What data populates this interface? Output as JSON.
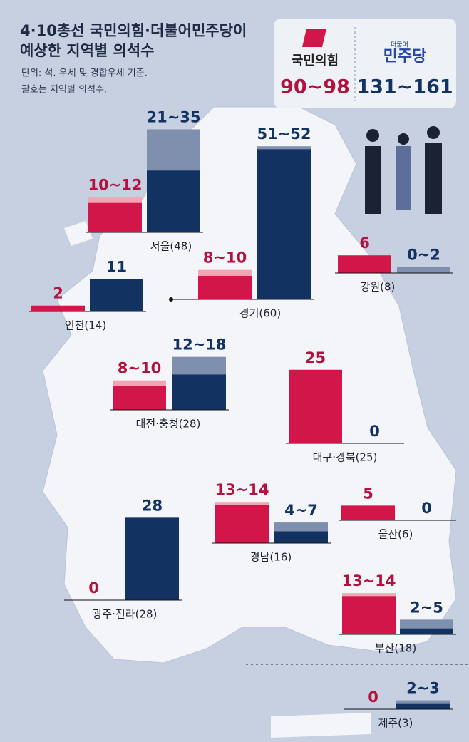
{
  "header": {
    "title": [
      "4·10총선 국민의힘·더불어민주당이",
      "예상한 지역별 의석수"
    ],
    "subtitle": [
      "단위: 석. 우세 및 경합우세 기준.",
      "괄호는 지역별 의석수."
    ]
  },
  "parties": [
    {
      "name": "국민의힘",
      "total": "90~98",
      "color": "#d2164a",
      "light": "#f2a5b2",
      "text": "#b3123f"
    },
    {
      "name": "민주당",
      "prefix": "더불어",
      "total": "131~161",
      "color": "#123262",
      "light": "#7f8fae",
      "text": "#123262"
    }
  ],
  "regions": [
    {
      "name": "서울(48)",
      "parties": [
        {
          "values": [
            10,
            12
          ],
          "label": "10~12"
        },
        {
          "values": [
            21,
            35
          ],
          "label": "21~35"
        }
      ]
    },
    {
      "name": "인천(14)",
      "parties": [
        {
          "values": [
            2
          ],
          "label": "2"
        },
        {
          "values": [
            11
          ],
          "label": "11"
        }
      ]
    },
    {
      "name": "경기(60)",
      "parties": [
        {
          "values": [
            8,
            10
          ],
          "label": "8~10"
        },
        {
          "values": [
            51,
            52
          ],
          "label": "51~52"
        }
      ]
    },
    {
      "name": "강원(8)",
      "parties": [
        {
          "values": [
            6
          ],
          "label": "6"
        },
        {
          "values": [
            0,
            2
          ],
          "label": "0~2"
        }
      ]
    },
    {
      "name": "대전·충청(28)",
      "parties": [
        {
          "values": [
            8,
            10
          ],
          "label": "8~10"
        },
        {
          "values": [
            12,
            18
          ],
          "label": "12~18"
        }
      ]
    },
    {
      "name": "대구·경북(25)",
      "parties": [
        {
          "values": [
            25
          ],
          "label": "25"
        },
        {
          "values": [
            0
          ],
          "label": "0"
        }
      ]
    },
    {
      "name": "경남(16)",
      "parties": [
        {
          "values": [
            13,
            14
          ],
          "label": "13~14"
        },
        {
          "values": [
            4,
            7
          ],
          "label": "4~7"
        }
      ]
    },
    {
      "name": "울산(6)",
      "parties": [
        {
          "values": [
            5
          ],
          "label": "5"
        },
        {
          "values": [
            0
          ],
          "label": "0"
        }
      ]
    },
    {
      "name": "광주·전라(28)",
      "parties": [
        {
          "values": [
            0
          ],
          "label": "0"
        },
        {
          "values": [
            28
          ],
          "label": "28"
        }
      ]
    },
    {
      "name": "부산(18)",
      "parties": [
        {
          "values": [
            13,
            14
          ],
          "label": "13~14"
        },
        {
          "values": [
            2,
            5
          ],
          "label": "2~5"
        }
      ]
    },
    {
      "name": "제주(3)",
      "parties": [
        {
          "values": [
            0
          ],
          "label": "0"
        },
        {
          "values": [
            2,
            3
          ],
          "label": "2~3"
        }
      ]
    }
  ]
}
